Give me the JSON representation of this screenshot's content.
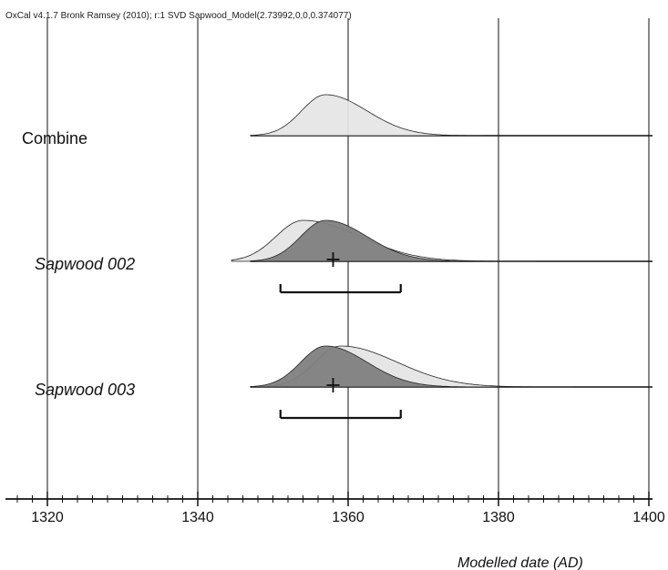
{
  "chart_data": {
    "type": "area",
    "title": "OxCal v4.1.7 Bronk Ramsey (2010); r:1 SVD Sapwood_Model(2.73992,0,0,0.374077)",
    "xlabel": "Modelled date (AD)",
    "xlim": [
      1315,
      1400
    ],
    "x_ticks": [
      1320,
      1340,
      1360,
      1380,
      1400
    ],
    "x_tick_labels": [
      "1320",
      "1340",
      "1360",
      "1380",
      "1400"
    ],
    "minor_tick_step": 2,
    "grid": true,
    "rows": [
      {
        "label": "Combine",
        "italic": false,
        "line_range": [
          1347,
          1400
        ],
        "distributions": [
          {
            "name": "likelihood",
            "mode": 1357,
            "sigma_left": 3.2,
            "sigma_right": 5.5,
            "start": 1347,
            "end": 1378,
            "fill": "#e6e6e6"
          }
        ]
      },
      {
        "label": "Sapwood 002",
        "italic": true,
        "line_range": [
          1347,
          1400
        ],
        "distributions": [
          {
            "name": "prior",
            "mode": 1354,
            "sigma_left": 3.6,
            "sigma_right": 7.5,
            "start": 1344.5,
            "end": 1385,
            "fill": "#e6e6e6"
          },
          {
            "name": "posterior",
            "mode": 1357,
            "sigma_left": 3.3,
            "sigma_right": 5.5,
            "start": 1347,
            "end": 1385,
            "fill": "#808080"
          }
        ],
        "mean_marker": 1358,
        "range_bracket": [
          1351,
          1367
        ]
      },
      {
        "label": "Sapwood 003",
        "italic": true,
        "line_range": [
          1347,
          1400
        ],
        "distributions": [
          {
            "name": "prior",
            "mode": 1359,
            "sigma_left": 3.4,
            "sigma_right": 7.5,
            "start": 1347,
            "end": 1390,
            "fill": "#e6e6e6"
          },
          {
            "name": "posterior",
            "mode": 1357,
            "sigma_left": 3.3,
            "sigma_right": 5.5,
            "start": 1347,
            "end": 1387,
            "fill": "#808080"
          }
        ],
        "mean_marker": 1358,
        "range_bracket": [
          1351,
          1367
        ]
      }
    ]
  }
}
